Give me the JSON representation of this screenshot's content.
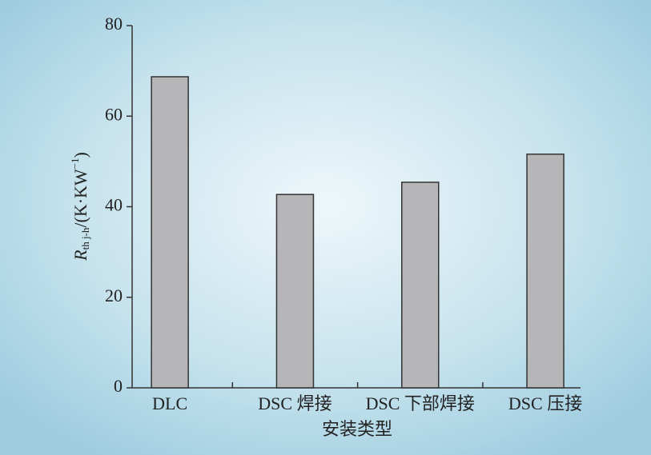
{
  "chart_data": {
    "type": "bar",
    "y_label": {
      "symbol": "R",
      "subscript": "th j-h",
      "unit": "/(K·KW",
      "superscript": "−1",
      "close": ")"
    },
    "x_label": "安装类型",
    "categories": [
      "DLC",
      "DSC 焊接",
      "DSC 下部焊接",
      "DSC 压接"
    ],
    "values": [
      68.7,
      42.7,
      45.4,
      51.6
    ],
    "color": "#b6b6b8",
    "ylim": [
      0,
      80
    ],
    "yticks": [
      0,
      20,
      40,
      60,
      80
    ],
    "grid": false
  }
}
